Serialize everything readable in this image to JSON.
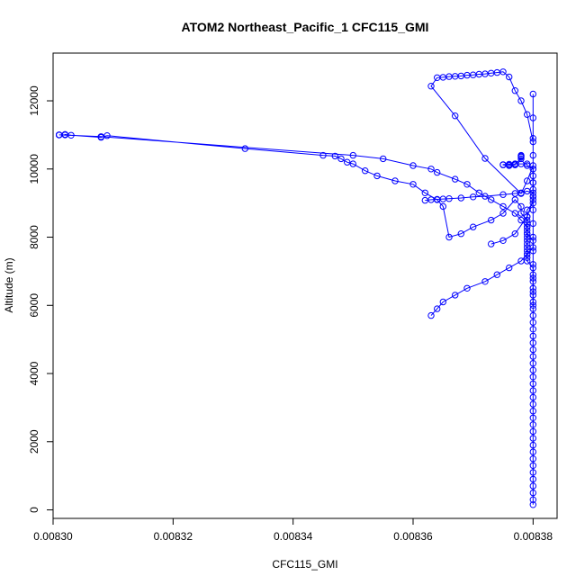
{
  "chart_data": {
    "type": "scatter",
    "title": "ATOM2 Northeast_Pacific_1 CFC115_GMI",
    "xlabel": "CFC115_GMI",
    "ylabel": "Altitude (m)",
    "xlim": [
      0.0083,
      0.008384
    ],
    "ylim": [
      -250,
      13400
    ],
    "xticks": [
      0.0083,
      0.00832,
      0.00834,
      0.00836,
      0.00838
    ],
    "xtick_labels": [
      "0.00830",
      "0.00832",
      "0.00834",
      "0.00836",
      "0.00838"
    ],
    "yticks": [
      0,
      2000,
      4000,
      6000,
      8000,
      10000,
      12000
    ],
    "ytick_labels": [
      "0",
      "2000",
      "4000",
      "6000",
      "8000",
      "10000",
      "12000"
    ],
    "marker": "open-circle",
    "connected": true,
    "color": "#0000ff",
    "series": [
      {
        "x": [
          0.00838,
          0.00838,
          0.00838,
          0.00838,
          0.00838,
          0.00838,
          0.00838,
          0.00838,
          0.00838,
          0.00838,
          0.00838,
          0.00838,
          0.00838,
          0.00838,
          0.00838,
          0.00838,
          0.00838,
          0.00838,
          0.00838,
          0.00838,
          0.00838,
          0.00838,
          0.00838,
          0.00838,
          0.00838,
          0.00838,
          0.00838,
          0.00838,
          0.00838,
          0.00838,
          0.00838,
          0.00838,
          0.00838,
          0.00838,
          0.00838,
          0.00838,
          0.008379,
          0.008379,
          0.008379,
          0.008379,
          0.008379,
          0.008379,
          0.008379,
          0.008378,
          0.008378,
          0.008377,
          0.008375,
          0.008373,
          0.00837,
          0.008368,
          0.008366,
          0.008365,
          0.008364,
          0.008362,
          0.00836,
          0.008357,
          0.008354,
          0.008352,
          0.00835,
          0.008349,
          0.008348,
          0.008347,
          0.008345,
          0.008332,
          0.008309,
          0.008308,
          0.008303,
          0.008302,
          0.008302,
          0.008302,
          0.008301,
          0.008301,
          0.008301,
          0.008301,
          0.008308,
          0.00835,
          0.008355,
          0.00836,
          0.008363,
          0.008364,
          0.008367,
          0.008369,
          0.008371,
          0.008373,
          0.008375,
          0.008377,
          0.008378,
          0.008379,
          0.008379,
          0.00838,
          0.00838,
          0.008379,
          0.008378,
          0.008376,
          0.008374,
          0.008372,
          0.008369,
          0.008367,
          0.008365,
          0.008364,
          0.008363
        ],
        "y": [
          150,
          300,
          500,
          700,
          900,
          1100,
          1300,
          1500,
          1700,
          1900,
          2100,
          2300,
          2500,
          2700,
          2900,
          3100,
          3300,
          3500,
          3700,
          3900,
          4100,
          4300,
          4500,
          4700,
          4900,
          5100,
          5300,
          5500,
          5700,
          5900,
          6100,
          6300,
          6500,
          6700,
          6900,
          7100,
          7300,
          7500,
          7700,
          7900,
          8100,
          8300,
          8500,
          8700,
          8900,
          9100,
          8700,
          8500,
          8300,
          8100,
          8000,
          8900,
          9100,
          9300,
          9550,
          9650,
          9800,
          9950,
          10150,
          10200,
          10300,
          10380,
          10400,
          10600,
          10980,
          10930,
          10990,
          11010,
          11010,
          11000,
          11000,
          11000,
          11000,
          11000,
          10950,
          10400,
          10300,
          10100,
          10000,
          9900,
          9700,
          9550,
          9300,
          9100,
          8900,
          8700,
          8500,
          8300,
          8100,
          7900,
          7700,
          7500,
          7300,
          7100,
          6900,
          6700,
          6500,
          6300,
          6100,
          5900,
          5700
        ]
      },
      {
        "x": [
          0.00838,
          0.00838,
          0.00838,
          0.00838,
          0.00838,
          0.00838,
          0.00838,
          0.00838,
          0.00838,
          0.00838,
          0.00838,
          0.00838,
          0.00838,
          0.008379,
          0.008378,
          0.008377,
          0.008376,
          0.008375,
          0.008374,
          0.008373,
          0.008372,
          0.008371,
          0.00837,
          0.008369,
          0.008368,
          0.008367,
          0.008366,
          0.008365,
          0.008364,
          0.008363,
          0.008367,
          0.008372,
          0.008378,
          0.008379,
          0.00838,
          0.00838,
          0.00838,
          0.00838
        ],
        "y": [
          6000,
          6400,
          6800,
          7200,
          7600,
          8000,
          8400,
          8800,
          9200,
          9600,
          10000,
          10400,
          10800,
          11600,
          12000,
          12300,
          12700,
          12850,
          12830,
          12810,
          12790,
          12780,
          12760,
          12750,
          12730,
          12720,
          12710,
          12690,
          12680,
          12430,
          11560,
          10310,
          9280,
          9650,
          10100,
          10900,
          11500,
          12200
        ]
      },
      {
        "x": [
          0.008378,
          0.008378,
          0.008378,
          0.008378,
          0.008377,
          0.008377,
          0.008377,
          0.008376,
          0.008376,
          0.008375,
          0.008375,
          0.008376,
          0.008377,
          0.008378,
          0.008379,
          0.008379,
          0.00838,
          0.00838,
          0.00838,
          0.00838,
          0.00838,
          0.00838,
          0.008379,
          0.008379,
          0.008379,
          0.008379,
          0.008379,
          0.008379,
          0.008379,
          0.008379
        ],
        "y": [
          10400,
          10380,
          10350,
          10300,
          10150,
          10130,
          10120,
          10110,
          10100,
          10120,
          10130,
          10140,
          10150,
          10150,
          10150,
          10100,
          10000,
          9800,
          9600,
          9400,
          9200,
          9000,
          8800,
          8600,
          8400,
          8200,
          8000,
          7800,
          7600,
          7400
        ]
      },
      {
        "x": [
          0.008373,
          0.008375,
          0.008377,
          0.008379,
          0.00838,
          0.00838,
          0.008379,
          0.008378,
          0.008377,
          0.008375,
          0.008372,
          0.00837,
          0.008368,
          0.008366,
          0.008365,
          0.008364,
          0.008363,
          0.008362
        ],
        "y": [
          7800,
          7900,
          8100,
          8600,
          9100,
          9300,
          9350,
          9300,
          9280,
          9250,
          9200,
          9180,
          9150,
          9130,
          9120,
          9110,
          9100,
          9080
        ]
      }
    ]
  }
}
